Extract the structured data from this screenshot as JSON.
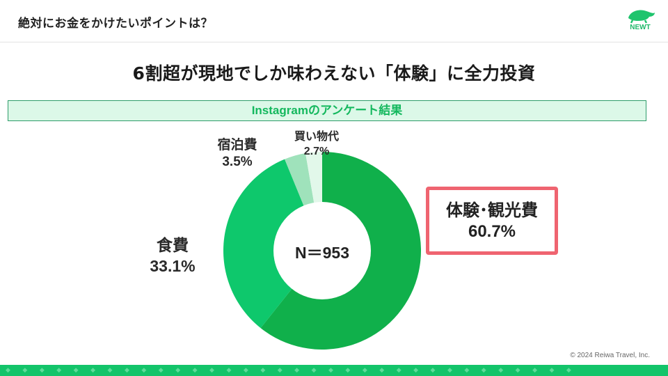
{
  "header": {
    "title": "絶対にお金をかけたいポイントは？",
    "logo_text": "NEWT",
    "logo_icon": "turtle-icon"
  },
  "headline": "6割超が現地でしか味わえない「体験」に全力投資",
  "banner": {
    "text": "Instagramのアンケート結果"
  },
  "chart_center_label": "N＝953",
  "labels": {
    "experience": {
      "name": "体験･観光費",
      "value": "60.7%"
    },
    "food": {
      "name": "食費",
      "value": "33.1%"
    },
    "lodging": {
      "name": "宿泊費",
      "value": "3.5%"
    },
    "shopping": {
      "name": "買い物代",
      "value": "2.7%"
    }
  },
  "colors": {
    "experience": "#10b04b",
    "food": "#0ec86c",
    "lodging": "#9fe2bb",
    "shopping": "#e2f8ea",
    "callout_border": "#ef6470",
    "banner_bg": "#dcf8e8",
    "banner_text": "#14b85e",
    "footer": "#13c46a"
  },
  "chart_data": {
    "type": "pie",
    "subtype": "donut",
    "title": "Instagramのアンケート結果",
    "categories": [
      "体験・観光費",
      "食費",
      "宿泊費",
      "買い物代"
    ],
    "values": [
      60.7,
      33.1,
      3.5,
      2.7
    ],
    "unit": "%",
    "sample_size": "N＝953",
    "start_angle": "12 o'clock",
    "direction": "clockwise",
    "legend": "none (direct labels)",
    "highlight": "体験・観光費"
  },
  "footer": {
    "copyright": "© 2024 Reiwa Travel, Inc.",
    "pattern": "◆◆◆◆◆◆◆◆◆◆◆◆◆◆◆◆◆◆◆◆◆◆◆◆◆◆◆◆◆◆◆◆◆◆"
  }
}
